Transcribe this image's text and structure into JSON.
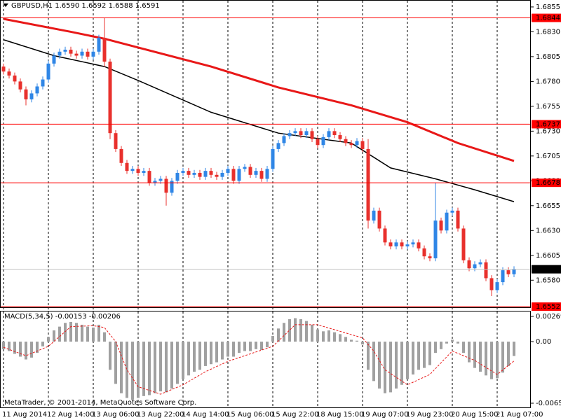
{
  "chart_data": [
    {
      "type": "candlestick",
      "title": "GBPUSD,H1  1.6590 1.6592 1.6588 1.6591",
      "categories": [
        "11 Aug 2014",
        null,
        null,
        null,
        null,
        null,
        null,
        null,
        "12 Aug 14:00",
        null,
        null,
        null,
        null,
        null,
        null,
        null,
        "13 Aug 06:00",
        null,
        null,
        null,
        null,
        null,
        null,
        null,
        "13 Aug 22:00",
        null,
        null,
        null,
        null,
        null,
        null,
        null,
        "14 Aug 14:00",
        null,
        null,
        null,
        null,
        null,
        null,
        null,
        "15 Aug 06:00",
        null,
        null,
        null,
        null,
        null,
        null,
        null,
        "15 Aug 22:00",
        null,
        null,
        null,
        null,
        null,
        null,
        null,
        "18 Aug 15:00",
        null,
        null,
        null,
        null,
        null,
        null,
        null,
        "19 Aug 07:00",
        null,
        null,
        null,
        null,
        null,
        null,
        null,
        "19 Aug 23:00",
        null,
        null,
        null,
        null,
        null,
        null,
        null,
        "20 Aug 15:00",
        null,
        null,
        null,
        null,
        null,
        null,
        null,
        "21 Aug 07:00",
        null,
        null,
        null
      ],
      "open": [
        1.6795,
        1.679,
        1.6786,
        1.678,
        1.6772,
        1.6762,
        1.6768,
        1.6775,
        1.6782,
        1.6798,
        1.6806,
        1.681,
        1.6812,
        1.6808,
        1.6806,
        1.681,
        1.6805,
        1.681,
        1.6824,
        1.68,
        1.6728,
        1.6712,
        1.6698,
        1.669,
        1.6692,
        1.6688,
        1.669,
        1.6678,
        1.668,
        1.6682,
        1.6668,
        1.668,
        1.6688,
        1.669,
        1.6686,
        1.6688,
        1.6684,
        1.669,
        1.6686,
        1.6684,
        1.6688,
        1.6692,
        1.668,
        1.6692,
        1.6694,
        1.6686,
        1.669,
        1.6682,
        1.6692,
        1.6712,
        1.6718,
        1.6725,
        1.6728,
        1.673,
        1.6726,
        1.673,
        1.6722,
        1.6716,
        1.6724,
        1.673,
        1.6726,
        1.6722,
        1.6718,
        1.6716,
        1.672,
        1.6712,
        1.664,
        1.665,
        1.6632,
        1.6618,
        1.6614,
        1.6618,
        1.6614,
        1.6616,
        1.6618,
        1.6612,
        1.6604,
        1.6602,
        1.664,
        1.663,
        1.6648,
        1.665,
        1.6632,
        1.66,
        1.6592,
        1.6596,
        1.6598,
        1.6582,
        1.657,
        1.6578,
        1.659,
        1.6586
      ],
      "high": [
        1.6798,
        1.6793,
        1.6789,
        1.6783,
        1.6775,
        1.6771,
        1.6778,
        1.6785,
        1.6801,
        1.6809,
        1.6813,
        1.6815,
        1.6815,
        1.6811,
        1.6813,
        1.6813,
        1.6813,
        1.6827,
        1.6844,
        1.6803,
        1.6731,
        1.6715,
        1.6701,
        1.6695,
        1.6695,
        1.6693,
        1.6693,
        1.6683,
        1.6685,
        1.6685,
        1.6683,
        1.6691,
        1.6693,
        1.6693,
        1.6691,
        1.6691,
        1.6693,
        1.6693,
        1.6689,
        1.6691,
        1.6695,
        1.6695,
        1.6695,
        1.6697,
        1.6697,
        1.6693,
        1.6693,
        1.6695,
        1.6715,
        1.6721,
        1.6728,
        1.6731,
        1.6733,
        1.6733,
        1.6733,
        1.6733,
        1.6725,
        1.6727,
        1.6733,
        1.6733,
        1.6729,
        1.6725,
        1.6721,
        1.6723,
        1.6723,
        1.6722,
        1.6653,
        1.6653,
        1.6635,
        1.6621,
        1.6621,
        1.6621,
        1.6619,
        1.6621,
        1.6621,
        1.6615,
        1.6607,
        1.6678,
        1.6643,
        1.6651,
        1.6653,
        1.6653,
        1.6635,
        1.6603,
        1.6599,
        1.6601,
        1.6601,
        1.6585,
        1.6581,
        1.6593,
        1.6593,
        1.6594
      ],
      "low": [
        1.6787,
        1.6783,
        1.6777,
        1.6769,
        1.6756,
        1.6759,
        1.6765,
        1.6772,
        1.6779,
        1.6795,
        1.6803,
        1.6807,
        1.6805,
        1.6803,
        1.6803,
        1.6802,
        1.6802,
        1.6807,
        1.6795,
        1.6722,
        1.6709,
        1.6695,
        1.6687,
        1.6687,
        1.6685,
        1.6685,
        1.6675,
        1.6675,
        1.6677,
        1.6655,
        1.6665,
        1.6677,
        1.6685,
        1.6683,
        1.6683,
        1.6681,
        1.6681,
        1.6683,
        1.6681,
        1.6681,
        1.6685,
        1.6677,
        1.6677,
        1.6689,
        1.6683,
        1.6683,
        1.6679,
        1.6679,
        1.6689,
        1.6709,
        1.6715,
        1.6722,
        1.6725,
        1.6723,
        1.6723,
        1.6719,
        1.6713,
        1.6713,
        1.6721,
        1.6723,
        1.6719,
        1.6715,
        1.6713,
        1.6713,
        1.6709,
        1.6632,
        1.6637,
        1.6629,
        1.6615,
        1.6611,
        1.6611,
        1.6611,
        1.6611,
        1.6613,
        1.6609,
        1.6601,
        1.6599,
        1.6599,
        1.6627,
        1.6627,
        1.6645,
        1.6629,
        1.6597,
        1.6589,
        1.6589,
        1.6593,
        1.6579,
        1.6564,
        1.6567,
        1.6575,
        1.6583,
        1.6583
      ],
      "close": [
        1.679,
        1.6786,
        1.678,
        1.6772,
        1.6762,
        1.6768,
        1.6775,
        1.6782,
        1.6798,
        1.6806,
        1.681,
        1.6812,
        1.6808,
        1.6806,
        1.681,
        1.6805,
        1.681,
        1.6824,
        1.68,
        1.6728,
        1.6712,
        1.6698,
        1.669,
        1.6692,
        1.6688,
        1.669,
        1.6678,
        1.668,
        1.6682,
        1.6668,
        1.668,
        1.6688,
        1.669,
        1.6686,
        1.6688,
        1.6684,
        1.669,
        1.6686,
        1.6684,
        1.6688,
        1.6692,
        1.668,
        1.6692,
        1.6694,
        1.6686,
        1.669,
        1.6682,
        1.6692,
        1.6712,
        1.6718,
        1.6725,
        1.6728,
        1.673,
        1.6726,
        1.673,
        1.6722,
        1.6716,
        1.6724,
        1.673,
        1.6726,
        1.6722,
        1.6718,
        1.6716,
        1.672,
        1.6712,
        1.664,
        1.665,
        1.6632,
        1.6618,
        1.6614,
        1.6618,
        1.6614,
        1.6616,
        1.6618,
        1.6612,
        1.6604,
        1.6602,
        1.664,
        1.663,
        1.6648,
        1.665,
        1.6632,
        1.66,
        1.6592,
        1.6596,
        1.6598,
        1.6582,
        1.657,
        1.6578,
        1.659,
        1.6586,
        1.6591
      ],
      "up_color": "#2f86e6",
      "down_color": "#e8302c",
      "ylim": [
        1.6552,
        1.6862
      ],
      "yticks": [
        {
          "value": 1.658,
          "label": "1.6580"
        },
        1.6605,
        {
          "value": 1.663,
          "label": "1.6630"
        },
        1.6655,
        {
          "value": 1.668,
          "label": "1.6680"
        },
        1.6705,
        {
          "value": 1.673,
          "label": "1.6730"
        },
        1.6755,
        {
          "value": 1.678,
          "label": "1.6780"
        },
        1.6805,
        {
          "value": 1.683,
          "label": "1.6830"
        },
        1.6855
      ],
      "levels": [
        1.6844,
        1.6737,
        1.6678,
        1.6552
      ],
      "level_color": "#ff0000",
      "current_price": 1.6591,
      "grid": true,
      "lines": [
        {
          "color": "#e81818",
          "width": 3,
          "x": [
            0,
            12,
            18,
            37,
            49,
            62,
            72,
            81,
            91
          ],
          "values": [
            1.6843,
            1.683,
            1.6823,
            1.6795,
            1.6774,
            1.6756,
            1.6739,
            1.6718,
            1.67
          ]
        },
        {
          "color": "#000000",
          "width": 1.5,
          "x": [
            0,
            9,
            18,
            24,
            37,
            49,
            62,
            69,
            77,
            84,
            91
          ],
          "values": [
            1.6822,
            1.6806,
            1.6795,
            1.6781,
            1.6749,
            1.6728,
            1.6718,
            1.6693,
            1.6682,
            1.6671,
            1.6659
          ]
        }
      ]
    },
    {
      "type": "bar",
      "title": "MACD(5,34,5) -0.00153 -0.00206",
      "values": [
        -0.0008,
        -0.001,
        -0.0013,
        -0.0016,
        -0.0019,
        -0.0017,
        -0.0012,
        -0.0005,
        0.0005,
        0.0012,
        0.0016,
        0.002,
        0.0021,
        0.002,
        0.0018,
        0.0016,
        0.0015,
        0.0018,
        0.001,
        -0.003,
        -0.0045,
        -0.0055,
        -0.006,
        -0.0062,
        -0.006,
        -0.0058,
        -0.0057,
        -0.0055,
        -0.0053,
        -0.0054,
        -0.005,
        -0.0045,
        -0.004,
        -0.0036,
        -0.0032,
        -0.003,
        -0.0026,
        -0.0024,
        -0.0022,
        -0.0019,
        -0.0016,
        -0.0016,
        -0.0012,
        -0.001,
        -0.001,
        -0.0008,
        -0.0009,
        -0.0006,
        0.0006,
        0.0014,
        0.002,
        0.0024,
        0.0025,
        0.0024,
        0.0022,
        0.0018,
        0.0013,
        0.0011,
        0.0012,
        0.001,
        0.0008,
        0.0005,
        0.0002,
        0.0001,
        -0.0003,
        -0.003,
        -0.0042,
        -0.005,
        -0.0055,
        -0.0054,
        -0.005,
        -0.0046,
        -0.004,
        -0.0035,
        -0.003,
        -0.0028,
        -0.0025,
        -0.0012,
        -0.0008,
        -0.0002,
        0.0002,
        -0.0002,
        -0.0012,
        -0.0022,
        -0.0028,
        -0.0032,
        -0.0036,
        -0.004,
        -0.0039,
        -0.0033,
        -0.0026,
        -0.00153
      ],
      "color": "#a0a0a0",
      "signal": {
        "color": "#e81818",
        "x": [
          0,
          4,
          8,
          12,
          16,
          18,
          20,
          22,
          24,
          28,
          32,
          36,
          40,
          44,
          48,
          52,
          56,
          60,
          64,
          66,
          68,
          72,
          76,
          80,
          84,
          88,
          91
        ],
        "values": [
          -0.0006,
          -0.0015,
          -0.0005,
          0.0016,
          0.0017,
          0.0015,
          0.0,
          -0.003,
          -0.0048,
          -0.0056,
          -0.0046,
          -0.0032,
          -0.0021,
          -0.0013,
          -0.0005,
          0.0018,
          0.0018,
          0.0011,
          0.0004,
          -0.001,
          -0.003,
          -0.0046,
          -0.0035,
          -0.001,
          -0.002,
          -0.0035,
          -0.00206
        ]
      },
      "ylim": [
        -0.00656,
        0.00269
      ],
      "yticks": [
        0.00269,
        {
          "value": 0,
          "label": "0.00"
        },
        -0.00656
      ]
    }
  ],
  "footer": "MetaTrader, © 2001-2014, MetaQuotes Software Corp."
}
